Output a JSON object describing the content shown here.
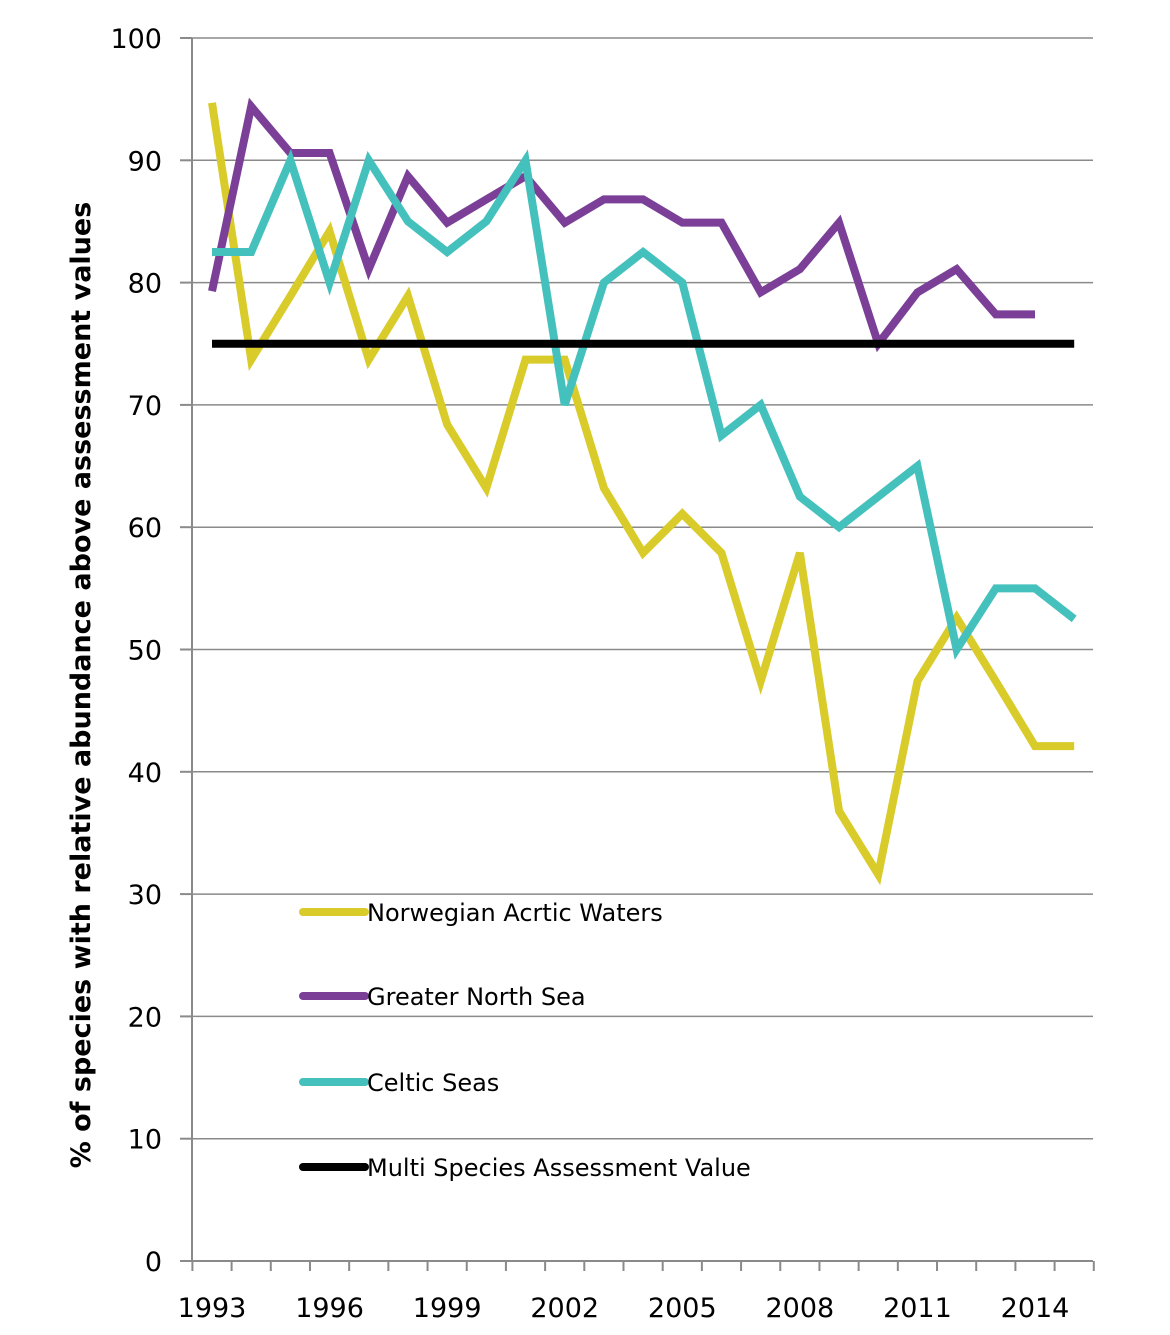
{
  "chart_data": {
    "type": "line",
    "title": "",
    "xlabel": "",
    "ylabel": "% of species with relative abundance above assessment values",
    "x": [
      1993,
      1994,
      1995,
      1996,
      1997,
      1998,
      1999,
      2000,
      2001,
      2002,
      2003,
      2004,
      2005,
      2006,
      2007,
      2008,
      2009,
      2010,
      2011,
      2012,
      2013,
      2014,
      2015
    ],
    "xlim": [
      1993,
      2015
    ],
    "x_tick_labels": [
      "1993",
      "1996",
      "1999",
      "2002",
      "2005",
      "2008",
      "2011",
      "2014"
    ],
    "ylim": [
      0,
      100
    ],
    "y_tick_labels": [
      "0",
      "10",
      "20",
      "30",
      "40",
      "50",
      "60",
      "70",
      "80",
      "90",
      "100"
    ],
    "grid": "horizontal",
    "legend_position": "lower-left inside",
    "series": [
      {
        "name": "Norwegian Acrtic Waters",
        "color": "#d9cc2a",
        "values": [
          94.7,
          73.7,
          78.9,
          84.2,
          73.7,
          78.9,
          68.4,
          63.2,
          73.7,
          73.7,
          63.2,
          57.9,
          61.1,
          57.9,
          47.4,
          57.9,
          36.8,
          31.6,
          47.4,
          52.6,
          47.4,
          42.1,
          42.1
        ]
      },
      {
        "name": "Greater North Sea",
        "color": "#7b3f98",
        "values": [
          79.3,
          94.4,
          90.6,
          90.6,
          81.1,
          88.7,
          84.9,
          86.8,
          88.7,
          84.9,
          86.8,
          86.8,
          84.9,
          84.9,
          79.2,
          81.1,
          84.9,
          75.0,
          79.2,
          81.1,
          77.4,
          77.4,
          null
        ]
      },
      {
        "name": "Celtic Seas",
        "color": "#45c1bd",
        "values": [
          82.5,
          82.5,
          90.0,
          80.0,
          90.0,
          85.0,
          82.5,
          85.0,
          90.0,
          70.0,
          80.0,
          82.5,
          80.0,
          67.5,
          70.0,
          62.5,
          60.0,
          62.5,
          65.0,
          50.0,
          55.0,
          55.0,
          52.5
        ]
      },
      {
        "name": "Multi Species Assessment Value",
        "color": "#000000",
        "values": [
          75,
          75,
          75,
          75,
          75,
          75,
          75,
          75,
          75,
          75,
          75,
          75,
          75,
          75,
          75,
          75,
          75,
          75,
          75,
          75,
          75,
          75,
          75
        ]
      }
    ]
  }
}
